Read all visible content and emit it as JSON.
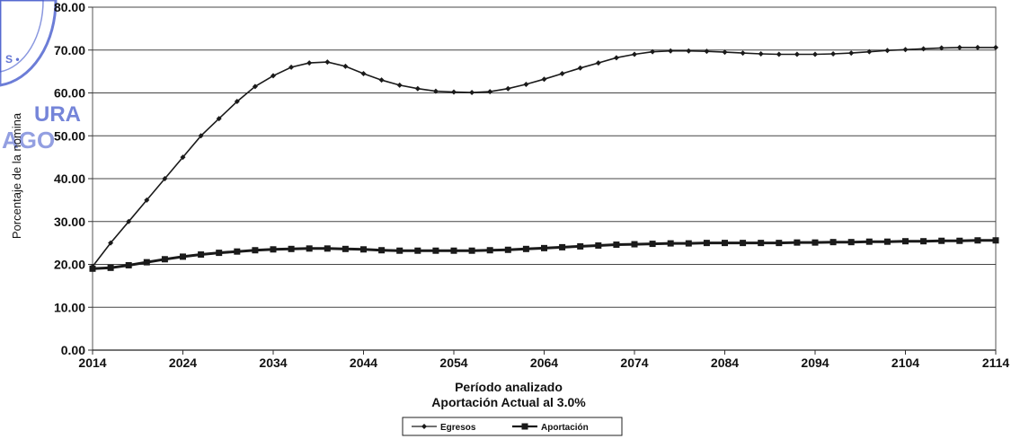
{
  "colors": {
    "line": "#1a1a1a",
    "grid": "#444444",
    "seal": "#3b52c9"
  },
  "seal": {
    "text_top": "S •",
    "text_mid": "URA",
    "text_low": "AGO"
  },
  "chart_data": {
    "type": "line",
    "title": "",
    "xlabel": "Período analizado",
    "xlabel2": "Aportación Actual al 3.0%",
    "ylabel": "Porcentaje de la nomina",
    "ylim": [
      0,
      80
    ],
    "yticks": [
      "0.00",
      "10.00",
      "20.00",
      "30.00",
      "40.00",
      "50.00",
      "60.00",
      "70.00",
      "80.00"
    ],
    "xlim": [
      2014,
      2114
    ],
    "xticks": [
      "2014",
      "2024",
      "2034",
      "2044",
      "2054",
      "2064",
      "2074",
      "2084",
      "2094",
      "2104",
      "2114"
    ],
    "grid": true,
    "legend_position": "bottom-center",
    "series": [
      {
        "name": "Egresos",
        "marker": "diamond",
        "points": [
          [
            2014,
            19.5
          ],
          [
            2016,
            25
          ],
          [
            2018,
            30
          ],
          [
            2020,
            35
          ],
          [
            2022,
            40
          ],
          [
            2024,
            45
          ],
          [
            2026,
            50
          ],
          [
            2028,
            54
          ],
          [
            2030,
            58
          ],
          [
            2032,
            61.5
          ],
          [
            2034,
            64
          ],
          [
            2036,
            66
          ],
          [
            2038,
            67
          ],
          [
            2040,
            67.2
          ],
          [
            2042,
            66.2
          ],
          [
            2044,
            64.5
          ],
          [
            2046,
            63
          ],
          [
            2048,
            61.8
          ],
          [
            2050,
            61
          ],
          [
            2052,
            60.4
          ],
          [
            2054,
            60.2
          ],
          [
            2056,
            60.1
          ],
          [
            2058,
            60.3
          ],
          [
            2060,
            61
          ],
          [
            2062,
            62
          ],
          [
            2064,
            63.2
          ],
          [
            2066,
            64.5
          ],
          [
            2068,
            65.8
          ],
          [
            2070,
            67
          ],
          [
            2072,
            68.2
          ],
          [
            2074,
            69
          ],
          [
            2076,
            69.6
          ],
          [
            2078,
            69.8
          ],
          [
            2080,
            69.8
          ],
          [
            2082,
            69.7
          ],
          [
            2084,
            69.5
          ],
          [
            2086,
            69.3
          ],
          [
            2088,
            69.1
          ],
          [
            2090,
            69
          ],
          [
            2092,
            69
          ],
          [
            2094,
            69
          ],
          [
            2096,
            69.1
          ],
          [
            2098,
            69.3
          ],
          [
            2100,
            69.6
          ],
          [
            2102,
            69.9
          ],
          [
            2104,
            70.1
          ],
          [
            2106,
            70.3
          ],
          [
            2108,
            70.5
          ],
          [
            2110,
            70.6
          ],
          [
            2112,
            70.6
          ],
          [
            2114,
            70.6
          ]
        ]
      },
      {
        "name": "Aportación",
        "marker": "square",
        "points": [
          [
            2014,
            19
          ],
          [
            2016,
            19.2
          ],
          [
            2018,
            19.8
          ],
          [
            2020,
            20.5
          ],
          [
            2022,
            21.2
          ],
          [
            2024,
            21.8
          ],
          [
            2026,
            22.3
          ],
          [
            2028,
            22.7
          ],
          [
            2030,
            23
          ],
          [
            2032,
            23.3
          ],
          [
            2034,
            23.5
          ],
          [
            2036,
            23.6
          ],
          [
            2038,
            23.7
          ],
          [
            2040,
            23.7
          ],
          [
            2042,
            23.6
          ],
          [
            2044,
            23.5
          ],
          [
            2046,
            23.3
          ],
          [
            2048,
            23.2
          ],
          [
            2050,
            23.2
          ],
          [
            2052,
            23.2
          ],
          [
            2054,
            23.2
          ],
          [
            2056,
            23.2
          ],
          [
            2058,
            23.3
          ],
          [
            2060,
            23.4
          ],
          [
            2062,
            23.6
          ],
          [
            2064,
            23.8
          ],
          [
            2066,
            24
          ],
          [
            2068,
            24.2
          ],
          [
            2070,
            24.4
          ],
          [
            2072,
            24.6
          ],
          [
            2074,
            24.7
          ],
          [
            2076,
            24.8
          ],
          [
            2078,
            24.9
          ],
          [
            2080,
            24.9
          ],
          [
            2082,
            25
          ],
          [
            2084,
            25
          ],
          [
            2086,
            25
          ],
          [
            2088,
            25
          ],
          [
            2090,
            25
          ],
          [
            2092,
            25.1
          ],
          [
            2094,
            25.1
          ],
          [
            2096,
            25.2
          ],
          [
            2098,
            25.2
          ],
          [
            2100,
            25.3
          ],
          [
            2102,
            25.3
          ],
          [
            2104,
            25.4
          ],
          [
            2106,
            25.4
          ],
          [
            2108,
            25.5
          ],
          [
            2110,
            25.5
          ],
          [
            2112,
            25.6
          ],
          [
            2114,
            25.6
          ]
        ]
      }
    ]
  }
}
